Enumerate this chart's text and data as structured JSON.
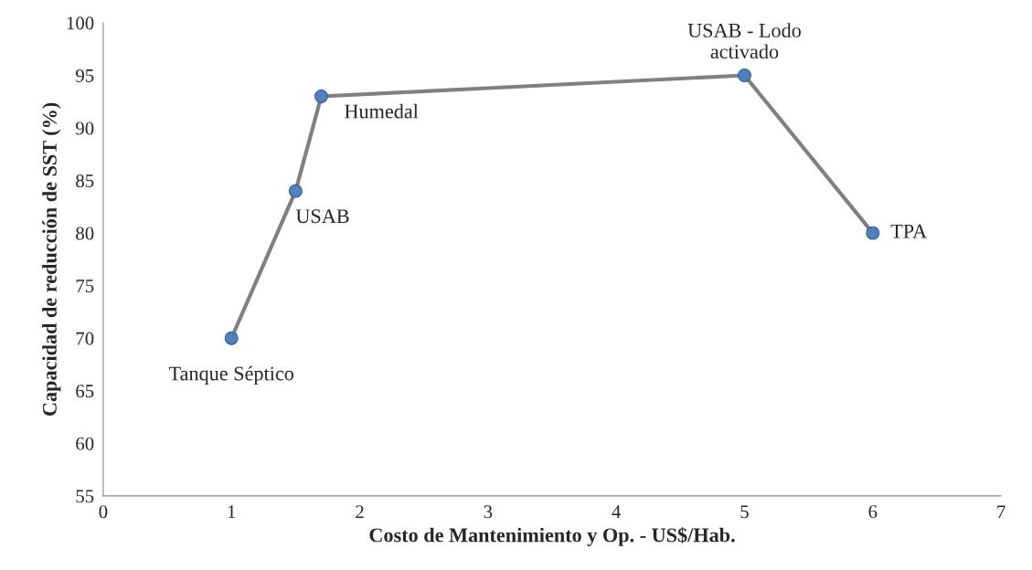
{
  "chart_data": {
    "type": "line",
    "xlabel": "Costo de Mantenimiento y Op. - US$/Hab.",
    "ylabel": "Capacidad de reducción de SST (%)",
    "x": [
      1,
      1.5,
      1.7,
      5,
      6
    ],
    "series": [
      {
        "color": "#808080",
        "values": [
          70,
          84,
          93,
          95,
          80
        ]
      }
    ],
    "marker": "circle",
    "line_style": "solid",
    "grid": false,
    "xlim": [
      0,
      7
    ],
    "xticks": [
      0,
      1,
      2,
      3,
      4,
      5,
      6,
      7
    ],
    "ylim": [
      55,
      100
    ],
    "yticks": [
      55,
      60,
      65,
      70,
      75,
      80,
      85,
      90,
      95,
      100
    ],
    "annotations": [
      {
        "text": "Tanque Séptico",
        "x": 1,
        "y": 70
      },
      {
        "text": "USAB",
        "x": 1.5,
        "y": 84
      },
      {
        "text": "Humedal",
        "x": 1.7,
        "y": 93
      },
      {
        "text": "USAB - Lodo\nactivado",
        "x": 5,
        "y": 95
      },
      {
        "text": "TPA",
        "x": 6,
        "y": 80
      }
    ]
  }
}
